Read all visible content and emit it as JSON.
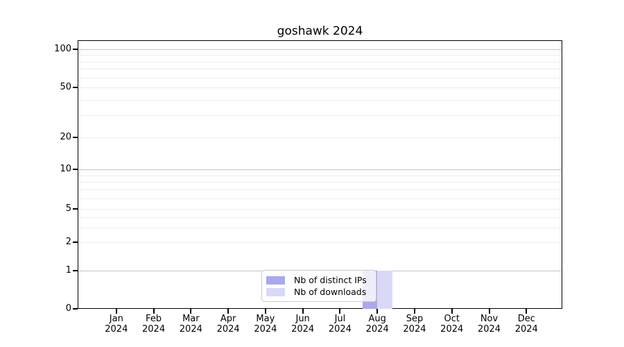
{
  "chart_data": {
    "type": "bar",
    "title": "goshawk 2024",
    "categories": [
      "Jan",
      "Feb",
      "Mar",
      "Apr",
      "May",
      "Jun",
      "Jul",
      "Aug",
      "Sep",
      "Oct",
      "Nov",
      "Dec"
    ],
    "year": "2024",
    "series": [
      {
        "name": "Nb of distinct IPs",
        "key": "distinct-ips",
        "color": "#a9a9ec",
        "values": [
          0,
          0,
          0,
          0,
          0,
          0,
          0,
          1,
          0,
          0,
          0,
          0
        ]
      },
      {
        "name": "Nb of downloads",
        "key": "downloads",
        "color": "#d9d9f7",
        "values": [
          0,
          0,
          0,
          0,
          0,
          0,
          0,
          1,
          0,
          0,
          0,
          0
        ]
      }
    ],
    "xlabel": "",
    "ylabel": "",
    "yscale": "log-like with 0 baseline",
    "ytick_values": [
      0,
      1,
      2,
      5,
      10,
      20,
      50,
      100
    ],
    "minor_grid_values": [
      2,
      3,
      4,
      5,
      6,
      7,
      8,
      9,
      20,
      30,
      40,
      50,
      60,
      70,
      80,
      90
    ],
    "major_grid_values": [
      1,
      10,
      100
    ],
    "ylim": [
      0,
      120
    ],
    "grid": "horizontal major+minor, grid on",
    "legend_position": "bottom-center inside plot"
  }
}
